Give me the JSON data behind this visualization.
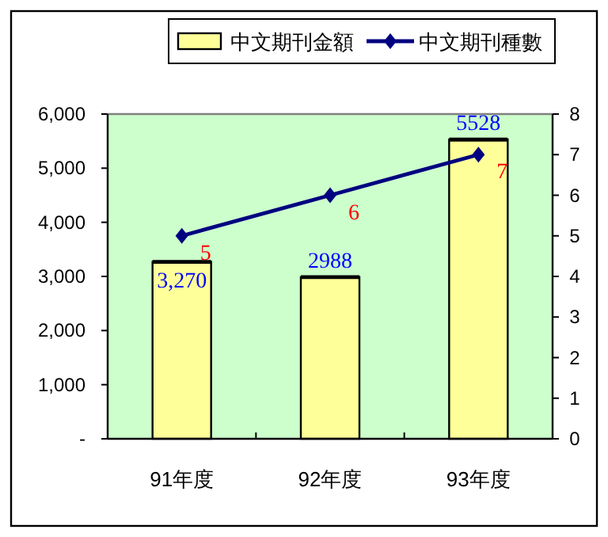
{
  "chart_data": {
    "type": "bar",
    "categories": [
      "91年度",
      "92年度",
      "93年度"
    ],
    "series": [
      {
        "name": "中文期刊金額",
        "color": "#ffff99",
        "values": [
          3270,
          2988,
          5528
        ],
        "value_labels": [
          "3,270",
          "2988",
          "5528"
        ]
      },
      {
        "name": "中文期刊種數",
        "type": "line",
        "axis": "y2",
        "color": "#000080",
        "values": [
          5,
          6,
          7
        ],
        "value_labels": [
          "5",
          "6",
          "7"
        ],
        "marker": "diamond"
      }
    ],
    "ylim": [
      0,
      6000
    ],
    "yticks": [
      {
        "value": 0,
        "label": "-"
      },
      {
        "value": 1000,
        "label": "1,000"
      },
      {
        "value": 2000,
        "label": "2,000"
      },
      {
        "value": 3000,
        "label": "3,000"
      },
      {
        "value": 4000,
        "label": "4,000"
      },
      {
        "value": 5000,
        "label": "5,000"
      },
      {
        "value": 6000,
        "label": "6,000"
      }
    ],
    "y2lim": [
      0,
      8
    ],
    "y2ticks": [
      0,
      1,
      2,
      3,
      4,
      5,
      6,
      7,
      8
    ],
    "legend": "top",
    "grid": false
  }
}
